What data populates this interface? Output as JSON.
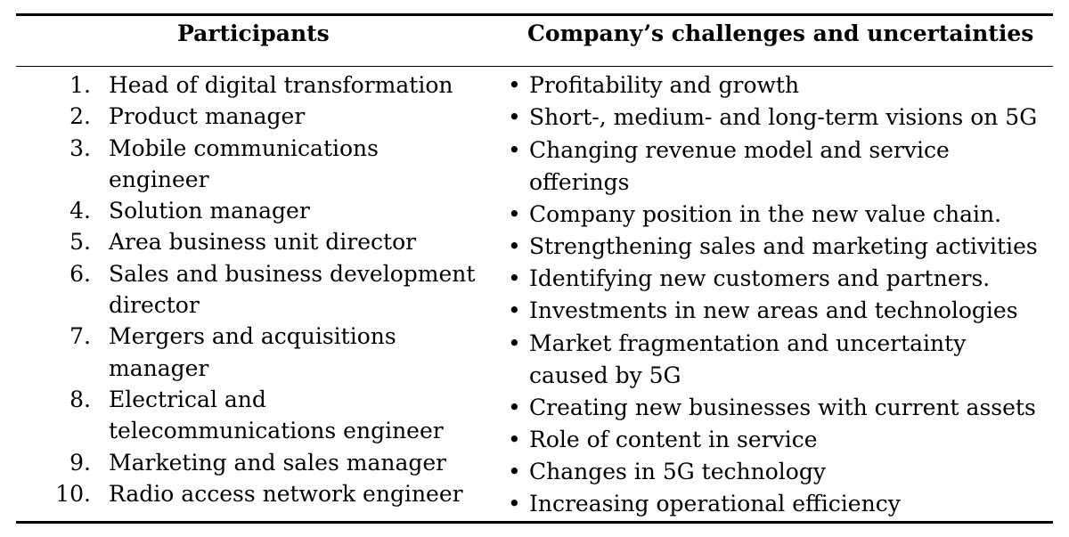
{
  "table": {
    "headers": {
      "left": "Participants",
      "right": "Company’s challenges and uncertainties"
    },
    "participants": [
      {
        "num": "1.",
        "text": "Head of digital transformation"
      },
      {
        "num": "2.",
        "text": "Product manager"
      },
      {
        "num": "3.",
        "text": "Mobile communications engineer"
      },
      {
        "num": "4.",
        "text": "Solution manager"
      },
      {
        "num": "5.",
        "text": "Area business unit director"
      },
      {
        "num": "6.",
        "text": "Sales and business development director"
      },
      {
        "num": "7.",
        "text": "Mergers and acquisitions manager"
      },
      {
        "num": "8.",
        "text": "Electrical and telecommunications engineer"
      },
      {
        "num": "9.",
        "text": "Marketing and sales manager"
      },
      {
        "num": "10.",
        "text": "Radio access network engineer"
      }
    ],
    "bullet_glyph": "•",
    "challenges": [
      "Profitability and growth",
      "Short-, medium- and long-term visions on 5G",
      "Changing revenue model and service offerings",
      "Company position in the new value chain.",
      "Strengthening sales and marketing activities",
      "Identifying new customers and partners.",
      "Investments in new areas and technologies",
      "Market fragmentation and uncertainty caused by 5G",
      "Creating new businesses with current assets",
      "Role of content in service",
      "Changes in 5G technology",
      "Increasing operational efficiency"
    ]
  }
}
